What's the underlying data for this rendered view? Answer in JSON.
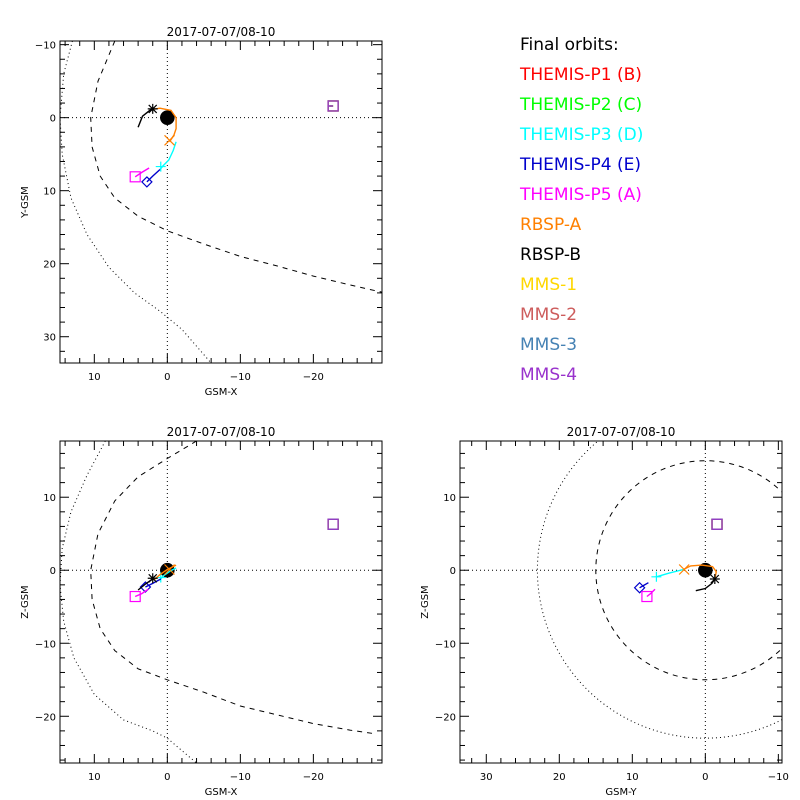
{
  "chart_data": [
    {
      "type": "scatter",
      "panel": "top-left",
      "title": "2017-07-07/08-10",
      "xlabel": "GSM-X",
      "ylabel": "Y-GSM",
      "xlim": [
        14.7,
        -29.4
      ],
      "ylim": [
        33.6,
        -10.5
      ],
      "xticks": [
        10,
        0,
        -10,
        -20
      ],
      "yticks": [
        -10,
        0,
        10,
        20,
        30
      ],
      "xtick_labels": [
        "10",
        "0",
        "−10",
        "−20"
      ],
      "ytick_labels": [
        "−10",
        "0",
        "10",
        "20",
        "30"
      ],
      "earth": {
        "x": 0,
        "y": 0,
        "r": 1
      },
      "boundaries": [
        {
          "name": "magnetopause",
          "style": "dashed",
          "points": [
            [
              7.2,
              -10.5
            ],
            [
              9.5,
              -5
            ],
            [
              10.5,
              0
            ],
            [
              10.3,
              4
            ],
            [
              9.2,
              8
            ],
            [
              7.2,
              11
            ],
            [
              4,
              13.5
            ],
            [
              0,
              15.5
            ],
            [
              -5,
              17.3
            ],
            [
              -10,
              19
            ],
            [
              -15,
              20.3
            ],
            [
              -20,
              21.7
            ],
            [
              -25,
              22.9
            ],
            [
              -29.4,
              23.9
            ]
          ]
        },
        {
          "name": "bow-shock",
          "style": "dotted",
          "points": [
            [
              13,
              -10.5
            ],
            [
              14.2,
              -6
            ],
            [
              14.7,
              0
            ],
            [
              14.4,
              5
            ],
            [
              13.2,
              11
            ],
            [
              11,
              16
            ],
            [
              8,
              20.5
            ],
            [
              4.5,
              24
            ],
            [
              1,
              26.5
            ],
            [
              -2,
              29
            ],
            [
              -6,
              33.6
            ]
          ]
        }
      ],
      "spacecraft": [
        {
          "name": "THEMIS-P1",
          "color": "#ff0000",
          "track": [
            [
              -22.2,
              -1.6
            ],
            [
              -22.7,
              -1.6
            ]
          ],
          "marker": "square",
          "pos": [
            -22.7,
            -1.6
          ]
        },
        {
          "name": "THEMIS-P2",
          "color": "#00ff00",
          "track": [
            [
              -22.2,
              -1.6
            ],
            [
              -22.7,
              -1.6
            ]
          ],
          "marker": "square",
          "pos": [
            -22.7,
            -1.6
          ]
        },
        {
          "name": "THEMIS-P3",
          "color": "#00ffff",
          "track": [
            [
              -1.2,
              3.3
            ],
            [
              -0.8,
              4.5
            ],
            [
              -0.2,
              5.8
            ],
            [
              0.6,
              6.6
            ],
            [
              1.0,
              7.1
            ]
          ],
          "marker": "plus",
          "pos": [
            0.9,
            6.7
          ]
        },
        {
          "name": "THEMIS-P4",
          "color": "#0000cc",
          "track": [
            [
              1.0,
              7.1
            ],
            [
              2.0,
              8.0
            ],
            [
              2.8,
              8.8
            ]
          ],
          "marker": "diamond",
          "pos": [
            2.8,
            8.8
          ]
        },
        {
          "name": "THEMIS-P5",
          "color": "#ff00ff",
          "track": [
            [
              2.5,
              6.9
            ],
            [
              3.5,
              7.5
            ],
            [
              4.4,
              8.1
            ]
          ],
          "marker": "square",
          "pos": [
            4.4,
            8.1
          ]
        },
        {
          "name": "RBSP-A",
          "color": "#ff8000",
          "track": [
            [
              2.2,
              -1.1
            ],
            [
              1,
              -1.3
            ],
            [
              -0.5,
              -1
            ],
            [
              -1.2,
              0
            ],
            [
              -1.2,
              1.5
            ],
            [
              -0.9,
              2.4
            ],
            [
              -0.3,
              3.3
            ]
          ],
          "marker": "x",
          "pos": [
            -0.3,
            3.1
          ]
        },
        {
          "name": "RBSP-B",
          "color": "#000000",
          "track": [
            [
              4.0,
              1.3
            ],
            [
              3.4,
              -0.2
            ],
            [
              2.4,
              -1.0
            ],
            [
              2.0,
              -1.2
            ]
          ],
          "marker": "asterisk",
          "pos": [
            2.0,
            -1.2
          ]
        },
        {
          "name": "MMS-1",
          "color": "#ffd700",
          "track": [],
          "marker": "square",
          "pos": [
            -22.7,
            -1.6
          ]
        },
        {
          "name": "MMS-2",
          "color": "#cd5c5c",
          "track": [],
          "marker": "square",
          "pos": [
            -22.7,
            -1.6
          ]
        },
        {
          "name": "MMS-3",
          "color": "#4682b4",
          "track": [],
          "marker": "square",
          "pos": [
            -22.7,
            -1.6
          ]
        },
        {
          "name": "MMS-4",
          "color": "#9932cc",
          "track": [
            [
              -22.0,
              -1.6
            ],
            [
              -22.7,
              -1.6
            ]
          ],
          "marker": "square",
          "pos": [
            -22.7,
            -1.6
          ]
        }
      ]
    },
    {
      "type": "scatter",
      "panel": "bottom-left",
      "title": "2017-07-07/08-10",
      "xlabel": "GSM-X",
      "ylabel": "Z-GSM",
      "xlim": [
        14.7,
        -29.4
      ],
      "ylim": [
        -26.4,
        17.7
      ],
      "xticks": [
        10,
        0,
        -10,
        -20
      ],
      "yticks": [
        10,
        0,
        -10,
        -20
      ],
      "xtick_labels": [
        "10",
        "0",
        "−10",
        "−20"
      ],
      "ytick_labels": [
        "10",
        "0",
        "−10",
        "−20"
      ],
      "earth": {
        "x": 0,
        "y": 0,
        "r": 1
      },
      "boundaries": [
        {
          "name": "magnetopause",
          "style": "dashed",
          "points": [
            [
              -4,
              17.7
            ],
            [
              0,
              15.3
            ],
            [
              4,
              12.8
            ],
            [
              7.2,
              9.5
            ],
            [
              9.5,
              5
            ],
            [
              10.5,
              0
            ],
            [
              10.3,
              -4
            ],
            [
              9.2,
              -8
            ],
            [
              7.2,
              -11
            ],
            [
              4,
              -13.5
            ],
            [
              0,
              -15
            ],
            [
              -5,
              -16.7
            ],
            [
              -10,
              -18.6
            ],
            [
              -15,
              -19.8
            ],
            [
              -20,
              -21
            ],
            [
              -25,
              -21.9
            ],
            [
              -28.5,
              -22.4
            ]
          ]
        },
        {
          "name": "bow-shock",
          "style": "dotted",
          "points": [
            [
              8.5,
              17.7
            ],
            [
              11,
              13
            ],
            [
              13.2,
              8
            ],
            [
              14.4,
              3
            ],
            [
              14.7,
              -2
            ],
            [
              14.2,
              -7
            ],
            [
              12.8,
              -12
            ],
            [
              10,
              -17
            ],
            [
              6,
              -20.5
            ],
            [
              2,
              -22
            ],
            [
              0,
              -23
            ],
            [
              -4,
              -26.4
            ]
          ]
        }
      ],
      "spacecraft": [
        {
          "name": "THEMIS-P1",
          "color": "#ff0000",
          "track": [],
          "marker": "square",
          "pos": [
            -22.7,
            6.3
          ]
        },
        {
          "name": "THEMIS-P2",
          "color": "#00ff00",
          "track": [],
          "marker": "square",
          "pos": [
            -22.7,
            6.3
          ]
        },
        {
          "name": "THEMIS-P3",
          "color": "#00ffff",
          "track": [
            [
              -1.2,
              0.3
            ],
            [
              -0.4,
              -0.1
            ],
            [
              0.6,
              -0.8
            ],
            [
              0.9,
              -1.2
            ]
          ],
          "marker": "plus",
          "pos": [
            0.9,
            -1.0
          ]
        },
        {
          "name": "THEMIS-P4",
          "color": "#0000cc",
          "track": [
            [
              0.9,
              -1.2
            ],
            [
              2,
              -1.8
            ],
            [
              3,
              -2.3
            ]
          ],
          "marker": "diamond",
          "pos": [
            3.0,
            -2.3
          ]
        },
        {
          "name": "THEMIS-P5",
          "color": "#ff00ff",
          "track": [
            [
              2.6,
              -2.6
            ],
            [
              3.5,
              -3.2
            ],
            [
              4.4,
              -3.6
            ]
          ],
          "marker": "square",
          "pos": [
            4.4,
            -3.6
          ]
        },
        {
          "name": "RBSP-A",
          "color": "#ff8000",
          "track": [
            [
              1.8,
              -1.3
            ],
            [
              1,
              -0.6
            ],
            [
              0,
              0.1
            ],
            [
              -1.2,
              0.7
            ]
          ],
          "marker": "x",
          "pos": [
            -0.3,
            0.1
          ]
        },
        {
          "name": "RBSP-B",
          "color": "#000000",
          "track": [
            [
              4.0,
              -2.7
            ],
            [
              3,
              -1.9
            ],
            [
              2,
              -1.2
            ]
          ],
          "marker": "asterisk",
          "pos": [
            2.0,
            -1.1
          ]
        },
        {
          "name": "MMS-1",
          "color": "#ffd700",
          "track": [],
          "marker": "square",
          "pos": [
            -22.7,
            6.3
          ]
        },
        {
          "name": "MMS-2",
          "color": "#cd5c5c",
          "track": [],
          "marker": "square",
          "pos": [
            -22.7,
            6.3
          ]
        },
        {
          "name": "MMS-3",
          "color": "#4682b4",
          "track": [],
          "marker": "square",
          "pos": [
            -22.7,
            6.3
          ]
        },
        {
          "name": "MMS-4",
          "color": "#9932cc",
          "track": [],
          "marker": "square",
          "pos": [
            -22.7,
            6.3
          ]
        }
      ]
    },
    {
      "type": "scatter",
      "panel": "bottom-right",
      "title": "2017-07-07/08-10",
      "xlabel": "GSM-Y",
      "ylabel": "Z-GSM",
      "xlim": [
        33.6,
        -10.5
      ],
      "ylim": [
        -26.4,
        17.7
      ],
      "xticks": [
        30,
        20,
        10,
        0,
        -10
      ],
      "yticks": [
        10,
        0,
        -10,
        -20
      ],
      "xtick_labels": [
        "30",
        "20",
        "10",
        "0",
        "−10"
      ],
      "ytick_labels": [
        "10",
        "0",
        "−10",
        "−20"
      ],
      "earth": {
        "x": 0,
        "y": 0,
        "r": 1
      },
      "boundaries": [
        {
          "name": "magnetopause",
          "style": "dashed",
          "circle": {
            "cx": 0,
            "cy": 0,
            "r": 15
          }
        },
        {
          "name": "bow-shock",
          "style": "dotted",
          "circle": {
            "cx": 0,
            "cy": 0,
            "r": 23
          }
        }
      ],
      "spacecraft": [
        {
          "name": "THEMIS-P1",
          "color": "#ff0000",
          "track": [],
          "marker": "square",
          "pos": [
            -1.6,
            6.3
          ]
        },
        {
          "name": "THEMIS-P2",
          "color": "#00ff00",
          "track": [],
          "marker": "square",
          "pos": [
            -1.6,
            6.3
          ]
        },
        {
          "name": "THEMIS-P3",
          "color": "#00ffff",
          "track": [
            [
              3.0,
              0.1
            ],
            [
              5,
              -0.4
            ],
            [
              6.7,
              -0.9
            ]
          ],
          "marker": "plus",
          "pos": [
            6.7,
            -0.9
          ]
        },
        {
          "name": "THEMIS-P4",
          "color": "#0000cc",
          "track": [
            [
              7.8,
              -1.7
            ],
            [
              8.5,
              -2.1
            ],
            [
              9.0,
              -2.4
            ]
          ],
          "marker": "diamond",
          "pos": [
            9.0,
            -2.4
          ]
        },
        {
          "name": "THEMIS-P5",
          "color": "#ff00ff",
          "track": [
            [
              6.9,
              -2.6
            ],
            [
              7.5,
              -3.2
            ],
            [
              8.0,
              -3.6
            ]
          ],
          "marker": "square",
          "pos": [
            8.0,
            -3.6
          ]
        },
        {
          "name": "RBSP-A",
          "color": "#ff8000",
          "track": [
            [
              3.0,
              0.1
            ],
            [
              2,
              0.6
            ],
            [
              0.5,
              0.7
            ],
            [
              -1.0,
              0.5
            ],
            [
              -1.5,
              -0.2
            ],
            [
              -1.3,
              -1.2
            ]
          ],
          "marker": "x",
          "pos": [
            2.9,
            0.1
          ]
        },
        {
          "name": "RBSP-B",
          "color": "#000000",
          "track": [
            [
              1.3,
              -2.8
            ],
            [
              0,
              -2.5
            ],
            [
              -0.9,
              -1.8
            ],
            [
              -1.3,
              -1.2
            ]
          ],
          "marker": "asterisk",
          "pos": [
            -1.3,
            -1.2
          ]
        },
        {
          "name": "MMS-1",
          "color": "#ffd700",
          "track": [],
          "marker": "square",
          "pos": [
            -1.6,
            6.3
          ]
        },
        {
          "name": "MMS-2",
          "color": "#cd5c5c",
          "track": [],
          "marker": "square",
          "pos": [
            -1.6,
            6.3
          ]
        },
        {
          "name": "MMS-3",
          "color": "#4682b4",
          "track": [],
          "marker": "square",
          "pos": [
            -1.6,
            6.3
          ]
        },
        {
          "name": "MMS-4",
          "color": "#9932cc",
          "track": [],
          "marker": "square",
          "pos": [
            -1.6,
            6.3
          ]
        }
      ]
    }
  ],
  "legend": {
    "title": "Final orbits:",
    "items": [
      {
        "label": "THEMIS-P1 (B)",
        "color": "#ff0000"
      },
      {
        "label": "THEMIS-P2 (C)",
        "color": "#00ff00"
      },
      {
        "label": "THEMIS-P3 (D)",
        "color": "#00ffff"
      },
      {
        "label": "THEMIS-P4 (E)",
        "color": "#0000cc"
      },
      {
        "label": "THEMIS-P5 (A)",
        "color": "#ff00ff"
      },
      {
        "label": "RBSP-A",
        "color": "#ff8000"
      },
      {
        "label": "RBSP-B",
        "color": "#000000"
      },
      {
        "label": "MMS-1",
        "color": "#ffd700"
      },
      {
        "label": "MMS-2",
        "color": "#cd5c5c"
      },
      {
        "label": "MMS-3",
        "color": "#4682b4"
      },
      {
        "label": "MMS-4",
        "color": "#9932cc"
      }
    ]
  }
}
